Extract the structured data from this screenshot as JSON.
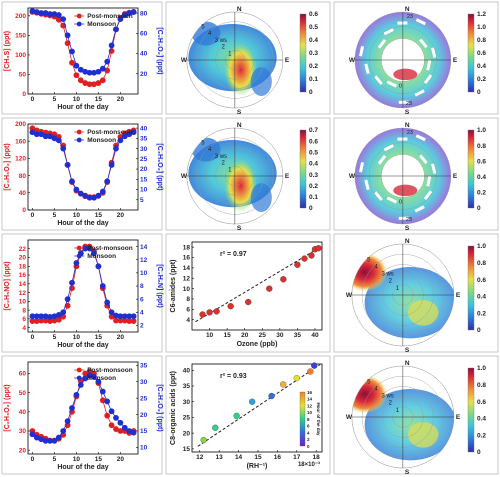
{
  "colors": {
    "post_monsoon": "#e02020",
    "monsoon": "#1f2fd0",
    "scatter_point": "#d93030",
    "fit_line": "#222222",
    "frame": "#bbbbbb",
    "colormap": [
      "#2c2fa8",
      "#2f7bd8",
      "#3cc4d8",
      "#7ad88a",
      "#e6e04a",
      "#f08a3a",
      "#d8283a",
      "#8c0f3a"
    ]
  },
  "legend": {
    "post_monsoon": "Post-monsoon",
    "monsoon": "Monsoon"
  },
  "chart_data": [
    {
      "type": "line",
      "row": 0,
      "xlabel": "Hour of the day",
      "ylabel_left": "[CH₃S] (ppt)",
      "ylabel_right": "[C₂H₄O₂] (ppt)",
      "xlim": [
        -1,
        24
      ],
      "ylim_left": [
        0,
        220
      ],
      "ylim_right": [
        0,
        85
      ],
      "xticks": [
        0,
        5,
        10,
        15,
        20
      ],
      "yticks_left": [
        0,
        50,
        100,
        150,
        200
      ],
      "yticks_right": [
        20,
        40,
        60,
        80
      ],
      "series": [
        {
          "name": "Post-monsoon",
          "axis": "left",
          "x": [
            0,
            1,
            2,
            3,
            4,
            5,
            6,
            7,
            8,
            9,
            10,
            11,
            12,
            13,
            14,
            15,
            16,
            17,
            18,
            19,
            20,
            21,
            22,
            23
          ],
          "y": [
            210,
            208,
            205,
            203,
            201,
            198,
            190,
            175,
            130,
            80,
            48,
            35,
            28,
            25,
            25,
            28,
            35,
            60,
            110,
            165,
            195,
            205,
            208,
            210
          ]
        },
        {
          "name": "Monsoon",
          "axis": "right",
          "x": [
            0,
            1,
            2,
            3,
            4,
            5,
            6,
            7,
            8,
            9,
            10,
            11,
            12,
            13,
            14,
            15,
            16,
            17,
            18,
            19,
            20,
            21,
            22,
            23
          ],
          "y": [
            82,
            81,
            80,
            80,
            79,
            79,
            78,
            74,
            58,
            42,
            28,
            24,
            22,
            21,
            21,
            22,
            25,
            32,
            48,
            64,
            74,
            78,
            80,
            81
          ]
        }
      ]
    },
    {
      "type": "heatmap",
      "row": 0,
      "subtype": "polar",
      "compass": {
        "n": "N",
        "s": "S",
        "w": "W",
        "e": "E"
      },
      "ring_labels": [
        "1",
        "2",
        "3 ws",
        "4",
        "5"
      ],
      "colorbar_ticks": [
        "0.6",
        "0.5",
        "0.4",
        "0.3",
        "0.2",
        "0.1",
        "0"
      ]
    },
    {
      "type": "heatmap",
      "row": 0,
      "subtype": "polar-time",
      "compass": {
        "n": "N",
        "s": "S",
        "w": "W",
        "e": "E"
      },
      "hour_labels": [
        "23",
        "0",
        "23"
      ],
      "colorbar_ticks": [
        "1.2",
        "1.0",
        "0.8",
        "0.6",
        "0.4",
        "0.2",
        "0"
      ]
    },
    {
      "type": "line",
      "row": 1,
      "xlabel": "Hour of the day",
      "ylabel_left": "[C₄H₆O₂] (ppt)",
      "ylabel_right": "[C₃H₆O₂] (ppt)",
      "xlim": [
        -1,
        24
      ],
      "ylim_left": [
        0,
        200
      ],
      "ylim_right": [
        0,
        42
      ],
      "xticks": [
        0,
        5,
        10,
        15,
        20
      ],
      "yticks_left": [
        0,
        40,
        80,
        120,
        160,
        200
      ],
      "yticks_right": [
        5,
        10,
        15,
        20,
        25,
        30,
        35,
        40
      ],
      "series": [
        {
          "name": "Post-monsoon",
          "axis": "left",
          "x": [
            0,
            1,
            2,
            3,
            4,
            5,
            6,
            7,
            8,
            9,
            10,
            11,
            12,
            13,
            14,
            15,
            16,
            17,
            18,
            19,
            20,
            21,
            22,
            23
          ],
          "y": [
            190,
            185,
            182,
            180,
            178,
            176,
            170,
            150,
            105,
            65,
            45,
            38,
            32,
            30,
            30,
            33,
            40,
            65,
            110,
            150,
            170,
            178,
            182,
            185
          ]
        },
        {
          "name": "Monsoon",
          "axis": "right",
          "x": [
            0,
            1,
            2,
            3,
            4,
            5,
            6,
            7,
            8,
            9,
            10,
            11,
            12,
            13,
            14,
            15,
            16,
            17,
            18,
            19,
            20,
            21,
            22,
            23
          ],
          "y": [
            38,
            37,
            37,
            36,
            36,
            35,
            34,
            30,
            22,
            14,
            10,
            8,
            7,
            6,
            6,
            7,
            9,
            14,
            22,
            30,
            34,
            36,
            37,
            38
          ]
        }
      ]
    },
    {
      "type": "heatmap",
      "row": 1,
      "subtype": "polar",
      "compass": {
        "n": "N",
        "s": "S",
        "w": "W",
        "e": "E"
      },
      "ring_labels": [
        "1",
        "2",
        "3 ws",
        "4",
        "5"
      ],
      "colorbar_ticks": [
        "0.7",
        "0.6",
        "0.5",
        "0.4",
        "0.3",
        "0.2",
        "0.1",
        "0"
      ]
    },
    {
      "type": "heatmap",
      "row": 1,
      "subtype": "polar-time",
      "compass": {
        "n": "N",
        "s": "S",
        "w": "W",
        "e": "E"
      },
      "hour_labels": [
        "23",
        "0",
        "23"
      ],
      "colorbar_ticks": [
        "1.0",
        "0.8",
        "0.6",
        "0.4",
        "0.2",
        "0"
      ]
    },
    {
      "type": "line",
      "row": 2,
      "xlabel": "Hour of the day",
      "ylabel_left": "[C₂H₅NO] (ppt)",
      "ylabel_right": "[C₂H₆N] (ppt)",
      "xlim": [
        -1,
        24
      ],
      "ylim_left": [
        3,
        24
      ],
      "ylim_right": [
        1,
        15
      ],
      "xticks": [
        0,
        5,
        10,
        15,
        20
      ],
      "yticks_left": [
        4,
        6,
        8,
        10,
        12,
        14,
        16,
        18,
        20,
        22
      ],
      "yticks_right": [
        2,
        4,
        6,
        8,
        10,
        12,
        14
      ],
      "series": [
        {
          "name": "Post-monsoon",
          "axis": "left",
          "x": [
            0,
            1,
            2,
            3,
            4,
            5,
            6,
            7,
            8,
            9,
            10,
            11,
            12,
            13,
            14,
            15,
            16,
            17,
            18,
            19,
            20,
            21,
            22,
            23
          ],
          "y": [
            5.5,
            5.5,
            5.6,
            5.6,
            5.5,
            5.6,
            5.8,
            6.5,
            9,
            13,
            18,
            21,
            22.5,
            22.5,
            21.5,
            18,
            13,
            9,
            6.5,
            5.6,
            5.6,
            5.6,
            5.5,
            5.5
          ]
        },
        {
          "name": "Monsoon",
          "axis": "right",
          "x": [
            0,
            1,
            2,
            3,
            4,
            5,
            6,
            7,
            8,
            9,
            10,
            11,
            12,
            13,
            14,
            15,
            16,
            17,
            18,
            19,
            20,
            21,
            22,
            23
          ],
          "y": [
            3.4,
            3.4,
            3.4,
            3.4,
            3.3,
            3.4,
            3.6,
            4,
            6,
            8.5,
            11.5,
            13,
            13.7,
            13.7,
            13,
            11,
            8,
            5.5,
            4,
            3.5,
            3.4,
            3.4,
            3.4,
            3.4
          ]
        }
      ]
    },
    {
      "type": "scatter",
      "row": 2,
      "xlabel": "Ozone (ppb)",
      "ylabel": "C6-amides (ppt)",
      "annotation": "r² = 0.97",
      "xlim": [
        5,
        42
      ],
      "ylim": [
        2,
        19
      ],
      "xticks": [
        10,
        15,
        20,
        25,
        30,
        35,
        40
      ],
      "yticks": [
        4,
        6,
        8,
        10,
        12,
        14,
        16,
        18
      ],
      "x": [
        8,
        10,
        12,
        16,
        21,
        27,
        31,
        35,
        37,
        39,
        40,
        41
      ],
      "y": [
        5.0,
        5.4,
        5.6,
        6.6,
        7.4,
        10.0,
        11.8,
        14.6,
        15.8,
        16.4,
        17.6,
        17.8
      ],
      "fit": {
        "x": [
          6,
          41
        ],
        "y": [
          3.6,
          17.8
        ]
      }
    },
    {
      "type": "heatmap",
      "row": 2,
      "subtype": "polar",
      "compass": {
        "n": "N",
        "s": "S",
        "w": "W",
        "e": "E"
      },
      "ring_labels": [
        "1",
        "2",
        "3 ws",
        "4",
        "5"
      ],
      "colorbar_ticks": [
        "1.0",
        "0.8",
        "0.6",
        "0.4",
        "0.2",
        "0"
      ]
    },
    {
      "type": "line",
      "row": 3,
      "xlabel": "Hour of the day",
      "ylabel_left": "[C₂H₃O₂] (ppt)",
      "ylabel_right": "[C₃H₄O₂] (ppt)",
      "xlim": [
        -1,
        24
      ],
      "ylim_left": [
        18,
        66
      ],
      "ylim_right": [
        8,
        36
      ],
      "xticks": [
        0,
        5,
        10,
        15,
        20
      ],
      "yticks_left": [
        20,
        30,
        40,
        50,
        60
      ],
      "yticks_right": [
        10,
        15,
        20,
        25,
        30,
        35
      ],
      "series": [
        {
          "name": "Post-monsoon",
          "axis": "left",
          "x": [
            0,
            1,
            2,
            3,
            4,
            5,
            6,
            7,
            8,
            9,
            10,
            11,
            12,
            13,
            14,
            15,
            16,
            17,
            18,
            19,
            20,
            21,
            22,
            23
          ],
          "y": [
            30,
            28,
            27,
            26,
            25,
            25,
            26,
            28,
            33,
            40,
            48,
            56,
            60,
            61,
            60,
            55,
            46,
            38,
            33,
            31,
            30,
            30,
            29,
            30
          ]
        },
        {
          "name": "Monsoon",
          "axis": "right",
          "x": [
            0,
            1,
            2,
            3,
            4,
            5,
            6,
            7,
            8,
            9,
            10,
            11,
            12,
            13,
            14,
            15,
            16,
            17,
            18,
            19,
            20,
            21,
            22,
            23
          ],
          "y": [
            14,
            13,
            12.5,
            12,
            12,
            12,
            13,
            15,
            18,
            22,
            26,
            29,
            31,
            32,
            31.5,
            30,
            27,
            24,
            21,
            19,
            17.5,
            16,
            15,
            14.5
          ]
        }
      ]
    },
    {
      "type": "scatter",
      "row": 3,
      "xlabel": "(RH⁻¹)",
      "ylabel": "C8-organic acids (ppt)",
      "annotation": "r² = 0.93",
      "xlim": [
        11.6,
        18.3
      ],
      "ylim": [
        14,
        42
      ],
      "xticks": [
        12,
        13,
        14,
        15,
        16,
        17,
        18
      ],
      "xtick_suffix": "18×10⁻³",
      "yticks": [
        15,
        20,
        25,
        30,
        35,
        40
      ],
      "x": [
        12.2,
        12.8,
        13.9,
        14.7,
        15.7,
        16.3,
        17.0,
        17.7,
        17.9
      ],
      "y": [
        17.8,
        21.7,
        25.5,
        30.0,
        31.8,
        35.5,
        37.5,
        39.6,
        41.5
      ],
      "hour": [
        14,
        12,
        11,
        9,
        7,
        20,
        16,
        22,
        3
      ],
      "fit": {
        "x": [
          11.9,
          18.2
        ],
        "y": [
          15.8,
          41.8
        ]
      },
      "hour_colorbar": {
        "label": "Hour of the day",
        "ticks": [
          0,
          2,
          4,
          6,
          8,
          10,
          12,
          14,
          16
        ]
      }
    },
    {
      "type": "heatmap",
      "row": 3,
      "subtype": "polar",
      "compass": {
        "n": "N",
        "s": "S",
        "w": "W",
        "e": "E"
      },
      "ring_labels": [
        "1",
        "2",
        "3 ws",
        "4",
        "5"
      ],
      "colorbar_ticks": [
        "1.0",
        "0.8",
        "0.6",
        "0.4",
        "0.2",
        "0"
      ]
    }
  ]
}
